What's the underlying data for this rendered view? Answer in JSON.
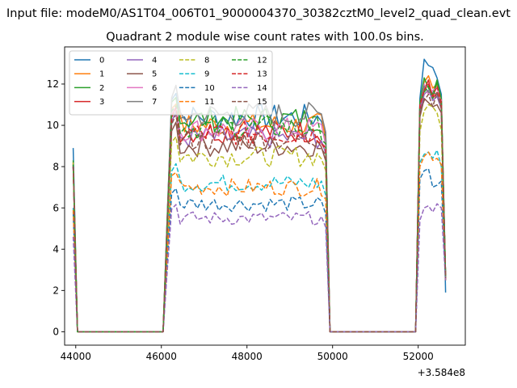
{
  "suptitle": "Input file: modeM0/AS1T04_006T01_9000004370_30382cztM0_level2_quad_clean.evt",
  "chart_data": {
    "type": "line",
    "title": "Quadrant 2 module wise count rates with 100.0s bins.",
    "xlabel": "",
    "ylabel": "",
    "x_offset_label": "+3.584e8",
    "xlim": [
      43740,
      53100
    ],
    "ylim": [
      -0.65,
      13.8
    ],
    "xticks": [
      44000,
      46000,
      48000,
      50000,
      52000
    ],
    "xtick_labels": [
      "44000",
      "46000",
      "48000",
      "50000",
      "52000"
    ],
    "yticks": [
      0,
      2,
      4,
      6,
      8,
      10,
      12
    ],
    "ytick_labels": [
      "0",
      "2",
      "4",
      "6",
      "8",
      "10",
      "12"
    ],
    "grid": false,
    "legend_position": "top-left",
    "legend_columns": 4,
    "note": "x values are seconds relative to 3.584e8; zero counts in data gaps",
    "segments": [
      {
        "x_start": 43940,
        "x_end": 44040,
        "bins": 2
      },
      {
        "x_start": 44040,
        "x_end": 46040,
        "bins": 21,
        "zero": true
      },
      {
        "x_start": 46140,
        "x_end": 49840,
        "bins": 38
      },
      {
        "x_start": 49940,
        "x_end": 51940,
        "bins": 21,
        "zero": true
      },
      {
        "x_start": 52040,
        "x_end": 52640,
        "bins": 7
      }
    ],
    "series": [
      {
        "name": "0",
        "color": "#1f77b4",
        "dash": false,
        "start": 8.9,
        "level": 10.4,
        "late": [
          11.3,
          13.2,
          12.9,
          12.8,
          12.3,
          11.5,
          1.9
        ]
      },
      {
        "name": "1",
        "color": "#ff7f0e",
        "dash": false,
        "start": 8.2,
        "level": 10.0,
        "late": [
          10.9,
          12.1,
          12.4,
          11.8,
          12.0,
          10.9,
          2.6
        ]
      },
      {
        "name": "2",
        "color": "#2ca02c",
        "dash": false,
        "start": 8.3,
        "level": 10.3,
        "late": [
          11.1,
          12.3,
          11.8,
          11.5,
          12.2,
          11.3,
          2.7
        ]
      },
      {
        "name": "3",
        "color": "#d62728",
        "dash": false,
        "start": 8.1,
        "level": 9.7,
        "late": [
          10.8,
          11.7,
          12.2,
          11.3,
          11.6,
          11.0,
          2.5
        ]
      },
      {
        "name": "4",
        "color": "#9467bd",
        "dash": false,
        "start": 8.0,
        "level": 9.4,
        "late": [
          10.6,
          11.5,
          11.7,
          11.2,
          11.4,
          10.8,
          2.6
        ]
      },
      {
        "name": "5",
        "color": "#8c564b",
        "dash": false,
        "start": 8.0,
        "level": 9.0,
        "late": [
          10.4,
          11.3,
          11.1,
          10.9,
          11.0,
          10.6,
          2.5
        ]
      },
      {
        "name": "6",
        "color": "#e377c2",
        "dash": false,
        "start": 8.2,
        "level": 9.8,
        "late": [
          10.9,
          12.0,
          11.5,
          11.7,
          11.8,
          11.2,
          2.6
        ]
      },
      {
        "name": "7",
        "color": "#7f7f7f",
        "dash": false,
        "start": 8.1,
        "level": 10.5,
        "late": [
          11.0,
          11.9,
          11.6,
          11.6,
          11.5,
          11.1,
          2.6
        ]
      },
      {
        "name": "8",
        "color": "#bcbd22",
        "dash": true,
        "start": 8.2,
        "level": 8.5,
        "late": [
          9.7,
          10.7,
          11.0,
          10.9,
          10.6,
          9.8,
          2.6
        ]
      },
      {
        "name": "9",
        "color": "#17becf",
        "dash": true,
        "start": 6.0,
        "level": 7.2,
        "late": [
          8.2,
          8.6,
          8.7,
          8.4,
          8.8,
          8.0,
          2.6
        ]
      },
      {
        "name": "10",
        "color": "#1f77b4",
        "dash": true,
        "start": 5.8,
        "level": 6.2,
        "late": [
          7.4,
          7.8,
          7.9,
          7.0,
          7.1,
          7.3,
          2.5
        ]
      },
      {
        "name": "11",
        "color": "#ff7f0e",
        "dash": true,
        "start": 5.9,
        "level": 7.0,
        "late": [
          8.0,
          8.5,
          8.7,
          8.3,
          8.4,
          8.1,
          2.5
        ]
      },
      {
        "name": "12",
        "color": "#2ca02c",
        "dash": true,
        "start": 8.1,
        "level": 9.9,
        "late": [
          11.1,
          11.6,
          11.9,
          11.3,
          12.1,
          11.3,
          2.7
        ]
      },
      {
        "name": "13",
        "color": "#d62728",
        "dash": true,
        "start": 8.0,
        "level": 9.6,
        "late": [
          11.0,
          11.7,
          12.0,
          11.4,
          11.9,
          11.1,
          2.6
        ]
      },
      {
        "name": "14",
        "color": "#9467bd",
        "dash": true,
        "start": 4.6,
        "level": 5.5,
        "late": [
          5.4,
          6.0,
          6.1,
          5.8,
          6.2,
          6.0,
          2.5
        ]
      },
      {
        "name": "15",
        "color": "#8c564b",
        "dash": true,
        "start": 8.0,
        "level": 9.3,
        "late": [
          10.7,
          11.2,
          11.5,
          10.9,
          11.6,
          10.8,
          2.6
        ]
      }
    ]
  }
}
